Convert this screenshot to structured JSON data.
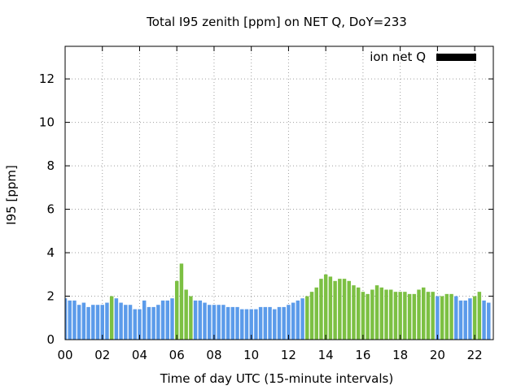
{
  "chart_data": {
    "type": "bar",
    "title": "Total I95 zenith [ppm] on NET Q, DoY=233",
    "xlabel": "Time of day UTC (15-minute intervals)",
    "ylabel": "I95 [ppm]",
    "xlim": [
      0,
      23
    ],
    "ylim": [
      0,
      13.5
    ],
    "x_ticks": [
      "00",
      "02",
      "04",
      "06",
      "08",
      "10",
      "12",
      "14",
      "16",
      "18",
      "20",
      "22"
    ],
    "x_tick_hours": [
      0,
      2,
      4,
      6,
      8,
      10,
      12,
      14,
      16,
      18,
      20,
      22
    ],
    "y_ticks": [
      0,
      2,
      4,
      6,
      8,
      10,
      12
    ],
    "grid": true,
    "legend_position": "top-right",
    "legend": [
      {
        "name": "ion net Q",
        "color": "#000000"
      }
    ],
    "colors": {
      "blue": "#5b9bea",
      "green": "#7cc043"
    },
    "interval_hours": 0.25,
    "values": [
      1.9,
      1.8,
      1.8,
      1.6,
      1.7,
      1.5,
      1.6,
      1.6,
      1.6,
      1.7,
      2.0,
      1.9,
      1.7,
      1.6,
      1.6,
      1.4,
      1.4,
      1.8,
      1.5,
      1.5,
      1.6,
      1.8,
      1.8,
      1.9,
      2.7,
      3.5,
      2.3,
      2.0,
      1.8,
      1.8,
      1.7,
      1.6,
      1.6,
      1.6,
      1.6,
      1.5,
      1.5,
      1.5,
      1.4,
      1.4,
      1.4,
      1.4,
      1.5,
      1.5,
      1.5,
      1.4,
      1.5,
      1.5,
      1.6,
      1.7,
      1.8,
      1.9,
      2.0,
      2.2,
      2.4,
      2.8,
      3.0,
      2.9,
      2.7,
      2.8,
      2.8,
      2.7,
      2.5,
      2.4,
      2.2,
      2.1,
      2.3,
      2.5,
      2.4,
      2.3,
      2.3,
      2.2,
      2.2,
      2.2,
      2.1,
      2.1,
      2.3,
      2.4,
      2.2,
      2.2,
      2.0,
      2.0,
      2.1,
      2.1,
      2.0,
      1.8,
      1.8,
      1.9,
      2.0,
      2.2,
      1.8,
      1.7
    ],
    "bar_colors": [
      "blue",
      "blue",
      "blue",
      "blue",
      "blue",
      "blue",
      "blue",
      "blue",
      "blue",
      "blue",
      "green",
      "blue",
      "blue",
      "blue",
      "blue",
      "blue",
      "blue",
      "blue",
      "blue",
      "blue",
      "blue",
      "blue",
      "blue",
      "blue",
      "green",
      "green",
      "green",
      "green",
      "blue",
      "blue",
      "blue",
      "blue",
      "blue",
      "blue",
      "blue",
      "blue",
      "blue",
      "blue",
      "blue",
      "blue",
      "blue",
      "blue",
      "blue",
      "blue",
      "blue",
      "blue",
      "blue",
      "blue",
      "blue",
      "blue",
      "blue",
      "blue",
      "green",
      "green",
      "green",
      "green",
      "green",
      "green",
      "green",
      "green",
      "green",
      "green",
      "green",
      "green",
      "green",
      "green",
      "green",
      "green",
      "green",
      "green",
      "green",
      "green",
      "green",
      "green",
      "green",
      "green",
      "green",
      "green",
      "green",
      "green",
      "blue",
      "green",
      "green",
      "green",
      "blue",
      "blue",
      "blue",
      "blue",
      "green",
      "green",
      "blue",
      "blue"
    ]
  }
}
